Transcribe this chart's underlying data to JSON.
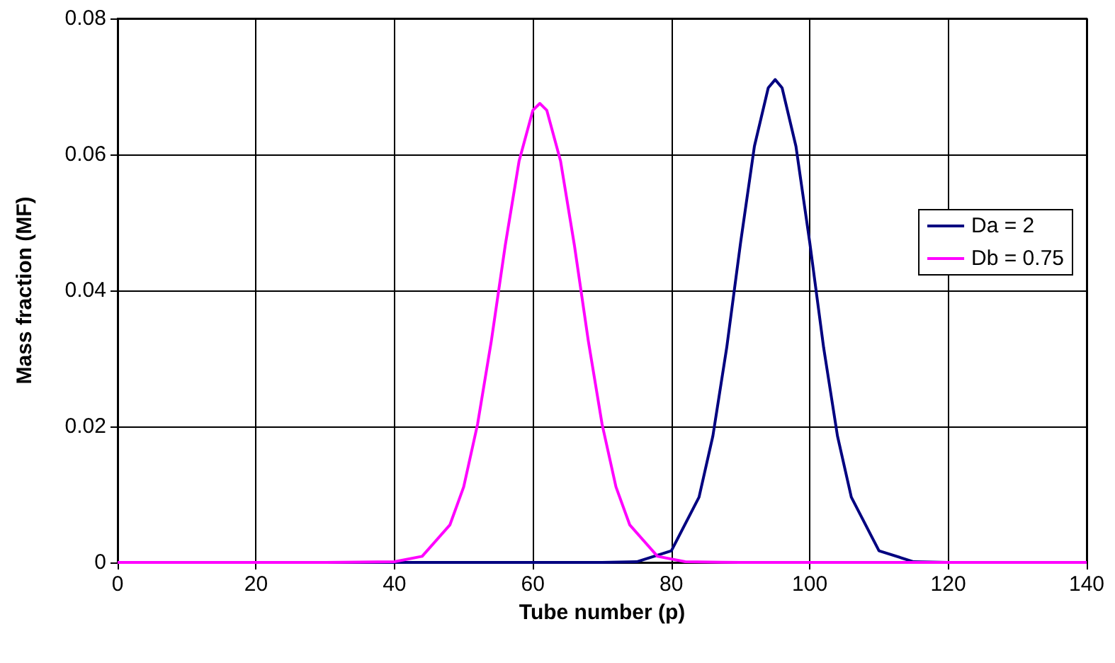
{
  "chart_data": {
    "type": "line",
    "xlabel": "Tube number (p)",
    "ylabel": "Mass fraction (MF)",
    "xlim": [
      0,
      140
    ],
    "xticks": [
      0,
      20,
      40,
      60,
      80,
      100,
      120,
      140
    ],
    "ylim": [
      0,
      0.08
    ],
    "yticks": [
      {
        "value": 0,
        "label": "0"
      },
      {
        "value": 0.02,
        "label": "0.02"
      },
      {
        "value": 0.04,
        "label": "0.04"
      },
      {
        "value": 0.06,
        "label": "0.06"
      },
      {
        "value": 0.08,
        "label": "0.08"
      }
    ],
    "grid": true,
    "legend": "right",
    "marker": "none",
    "line_style": "solid",
    "series": [
      {
        "name": "Da = 2",
        "color": "#000080",
        "x": [
          0,
          70,
          75,
          80,
          84,
          86,
          88,
          90,
          92,
          94,
          95,
          96,
          98,
          100,
          102,
          104,
          106,
          110,
          115,
          120,
          140
        ],
        "values": [
          0,
          0,
          0.0001,
          0.0017,
          0.0096,
          0.0186,
          0.0316,
          0.047,
          0.0612,
          0.0698,
          0.071,
          0.0698,
          0.0612,
          0.047,
          0.0316,
          0.0186,
          0.0096,
          0.0017,
          0.0001,
          0,
          0
        ]
      },
      {
        "name": "Db = 0.75",
        "color": "#ff00ff",
        "x": [
          0,
          30,
          40,
          44,
          48,
          50,
          52,
          54,
          56,
          58,
          60,
          61,
          62,
          64,
          66,
          68,
          70,
          72,
          74,
          78,
          82,
          90,
          140
        ],
        "values": [
          0,
          0,
          0.0001,
          0.0009,
          0.0055,
          0.0111,
          0.0203,
          0.0326,
          0.0466,
          0.059,
          0.0665,
          0.0675,
          0.0665,
          0.059,
          0.0466,
          0.0326,
          0.0203,
          0.0111,
          0.0055,
          0.0009,
          0.0001,
          0,
          0
        ]
      }
    ]
  }
}
